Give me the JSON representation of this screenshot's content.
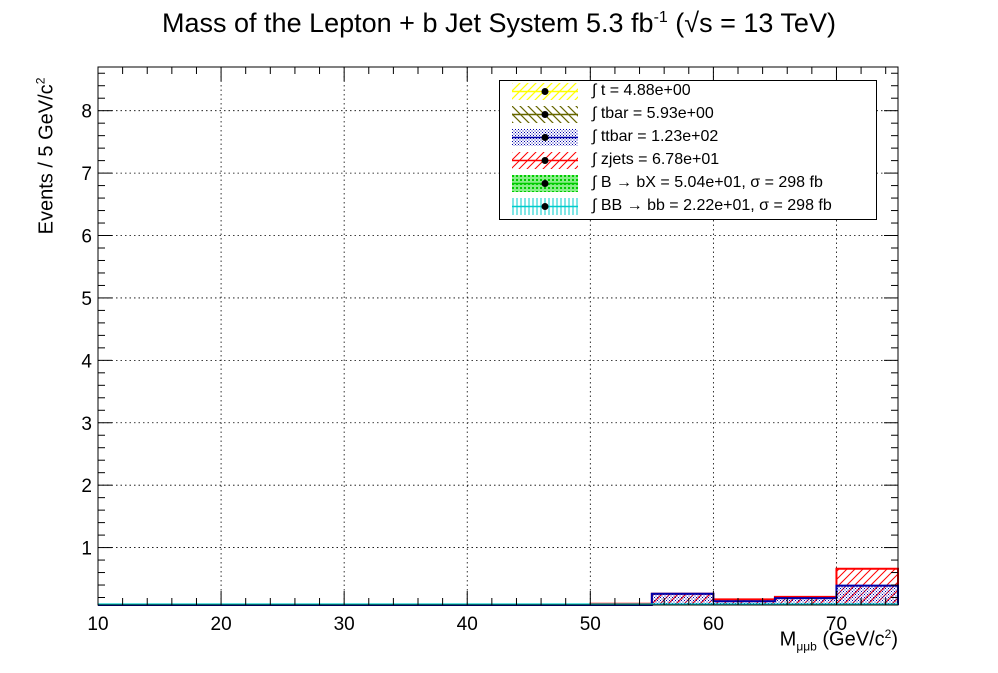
{
  "title_main": "Mass of the Lepton + b Jet System 5.3 fb",
  "title_sup": "-1",
  "title_energy": " (√s = 13 TeV)",
  "y_label_main": "Events / 5 GeV/c",
  "y_label_sup": "2",
  "x_label_main": "M",
  "x_label_sub": "μμb",
  "x_label_unit": " (GeV/c",
  "x_label_sup": "2",
  "x_label_close": ")",
  "legend": [
    {
      "text": "∫ t = 4.88e+00",
      "color": "#ffff00",
      "pattern": "diag"
    },
    {
      "text": "∫ tbar = 5.93e+00",
      "color": "#666600",
      "pattern": "diag-back"
    },
    {
      "text": "∫ ttbar = 1.23e+02",
      "color": "#0000aa",
      "pattern": "dots"
    },
    {
      "text": "∫ zjets = 6.78e+01",
      "color": "#ff0000",
      "pattern": "diag"
    },
    {
      "text": "∫ B → bX = 5.04e+01, σ = 298 fb",
      "color": "#00cc00",
      "pattern": "solid-light"
    },
    {
      "text": "∫ BB → bb = 2.22e+01, σ = 298 fb",
      "color": "#00cccc",
      "pattern": "vertical"
    }
  ],
  "chart_data": {
    "type": "histogram",
    "title": "Mass of the Lepton + b Jet System 5.3 fb^-1 (√s = 13 TeV)",
    "xlabel": "M_μμb (GeV/c^2)",
    "ylabel": "Events / 5 GeV/c^2",
    "xlim": [
      10,
      75
    ],
    "ylim": [
      0.08,
      8.7
    ],
    "x_ticks": [
      10,
      20,
      30,
      40,
      50,
      60,
      70
    ],
    "y_ticks": [
      1,
      2,
      3,
      4,
      5,
      6,
      7,
      8
    ],
    "grid": true,
    "legend_position": "top-right",
    "bin_edges": [
      10,
      15,
      20,
      25,
      30,
      35,
      40,
      45,
      50,
      55,
      60,
      65,
      70,
      75
    ],
    "series": [
      {
        "name": "t",
        "color": "#ffff00",
        "values": [
          0,
          0,
          0,
          0,
          0,
          0,
          0,
          0,
          0,
          0,
          0,
          0,
          0
        ]
      },
      {
        "name": "tbar",
        "color": "#666600",
        "values": [
          0,
          0,
          0,
          0,
          0,
          0,
          0,
          0,
          0,
          0,
          0,
          0,
          0
        ]
      },
      {
        "name": "ttbar",
        "color": "#0000aa",
        "values": [
          0,
          0,
          0,
          0,
          0,
          0,
          0.01,
          0,
          0.06,
          0.26,
          0.14,
          0.19,
          0.39
        ]
      },
      {
        "name": "zjets",
        "color": "#ff0000",
        "values": [
          0,
          0,
          0,
          0,
          0,
          0,
          0.02,
          0,
          0.1,
          0.26,
          0.17,
          0.21,
          0.66
        ]
      },
      {
        "name": "B → bX",
        "color": "#00cc00",
        "values": [
          0,
          0,
          0,
          0,
          0,
          0,
          0,
          0,
          0,
          0,
          0,
          0,
          0
        ]
      },
      {
        "name": "BB → bb",
        "color": "#00cccc",
        "values": [
          0.09,
          0.09,
          0.09,
          0.09,
          0.09,
          0.09,
          0.09,
          0.09,
          0.09,
          0.09,
          0.09,
          0.09,
          0.09
        ]
      }
    ]
  }
}
